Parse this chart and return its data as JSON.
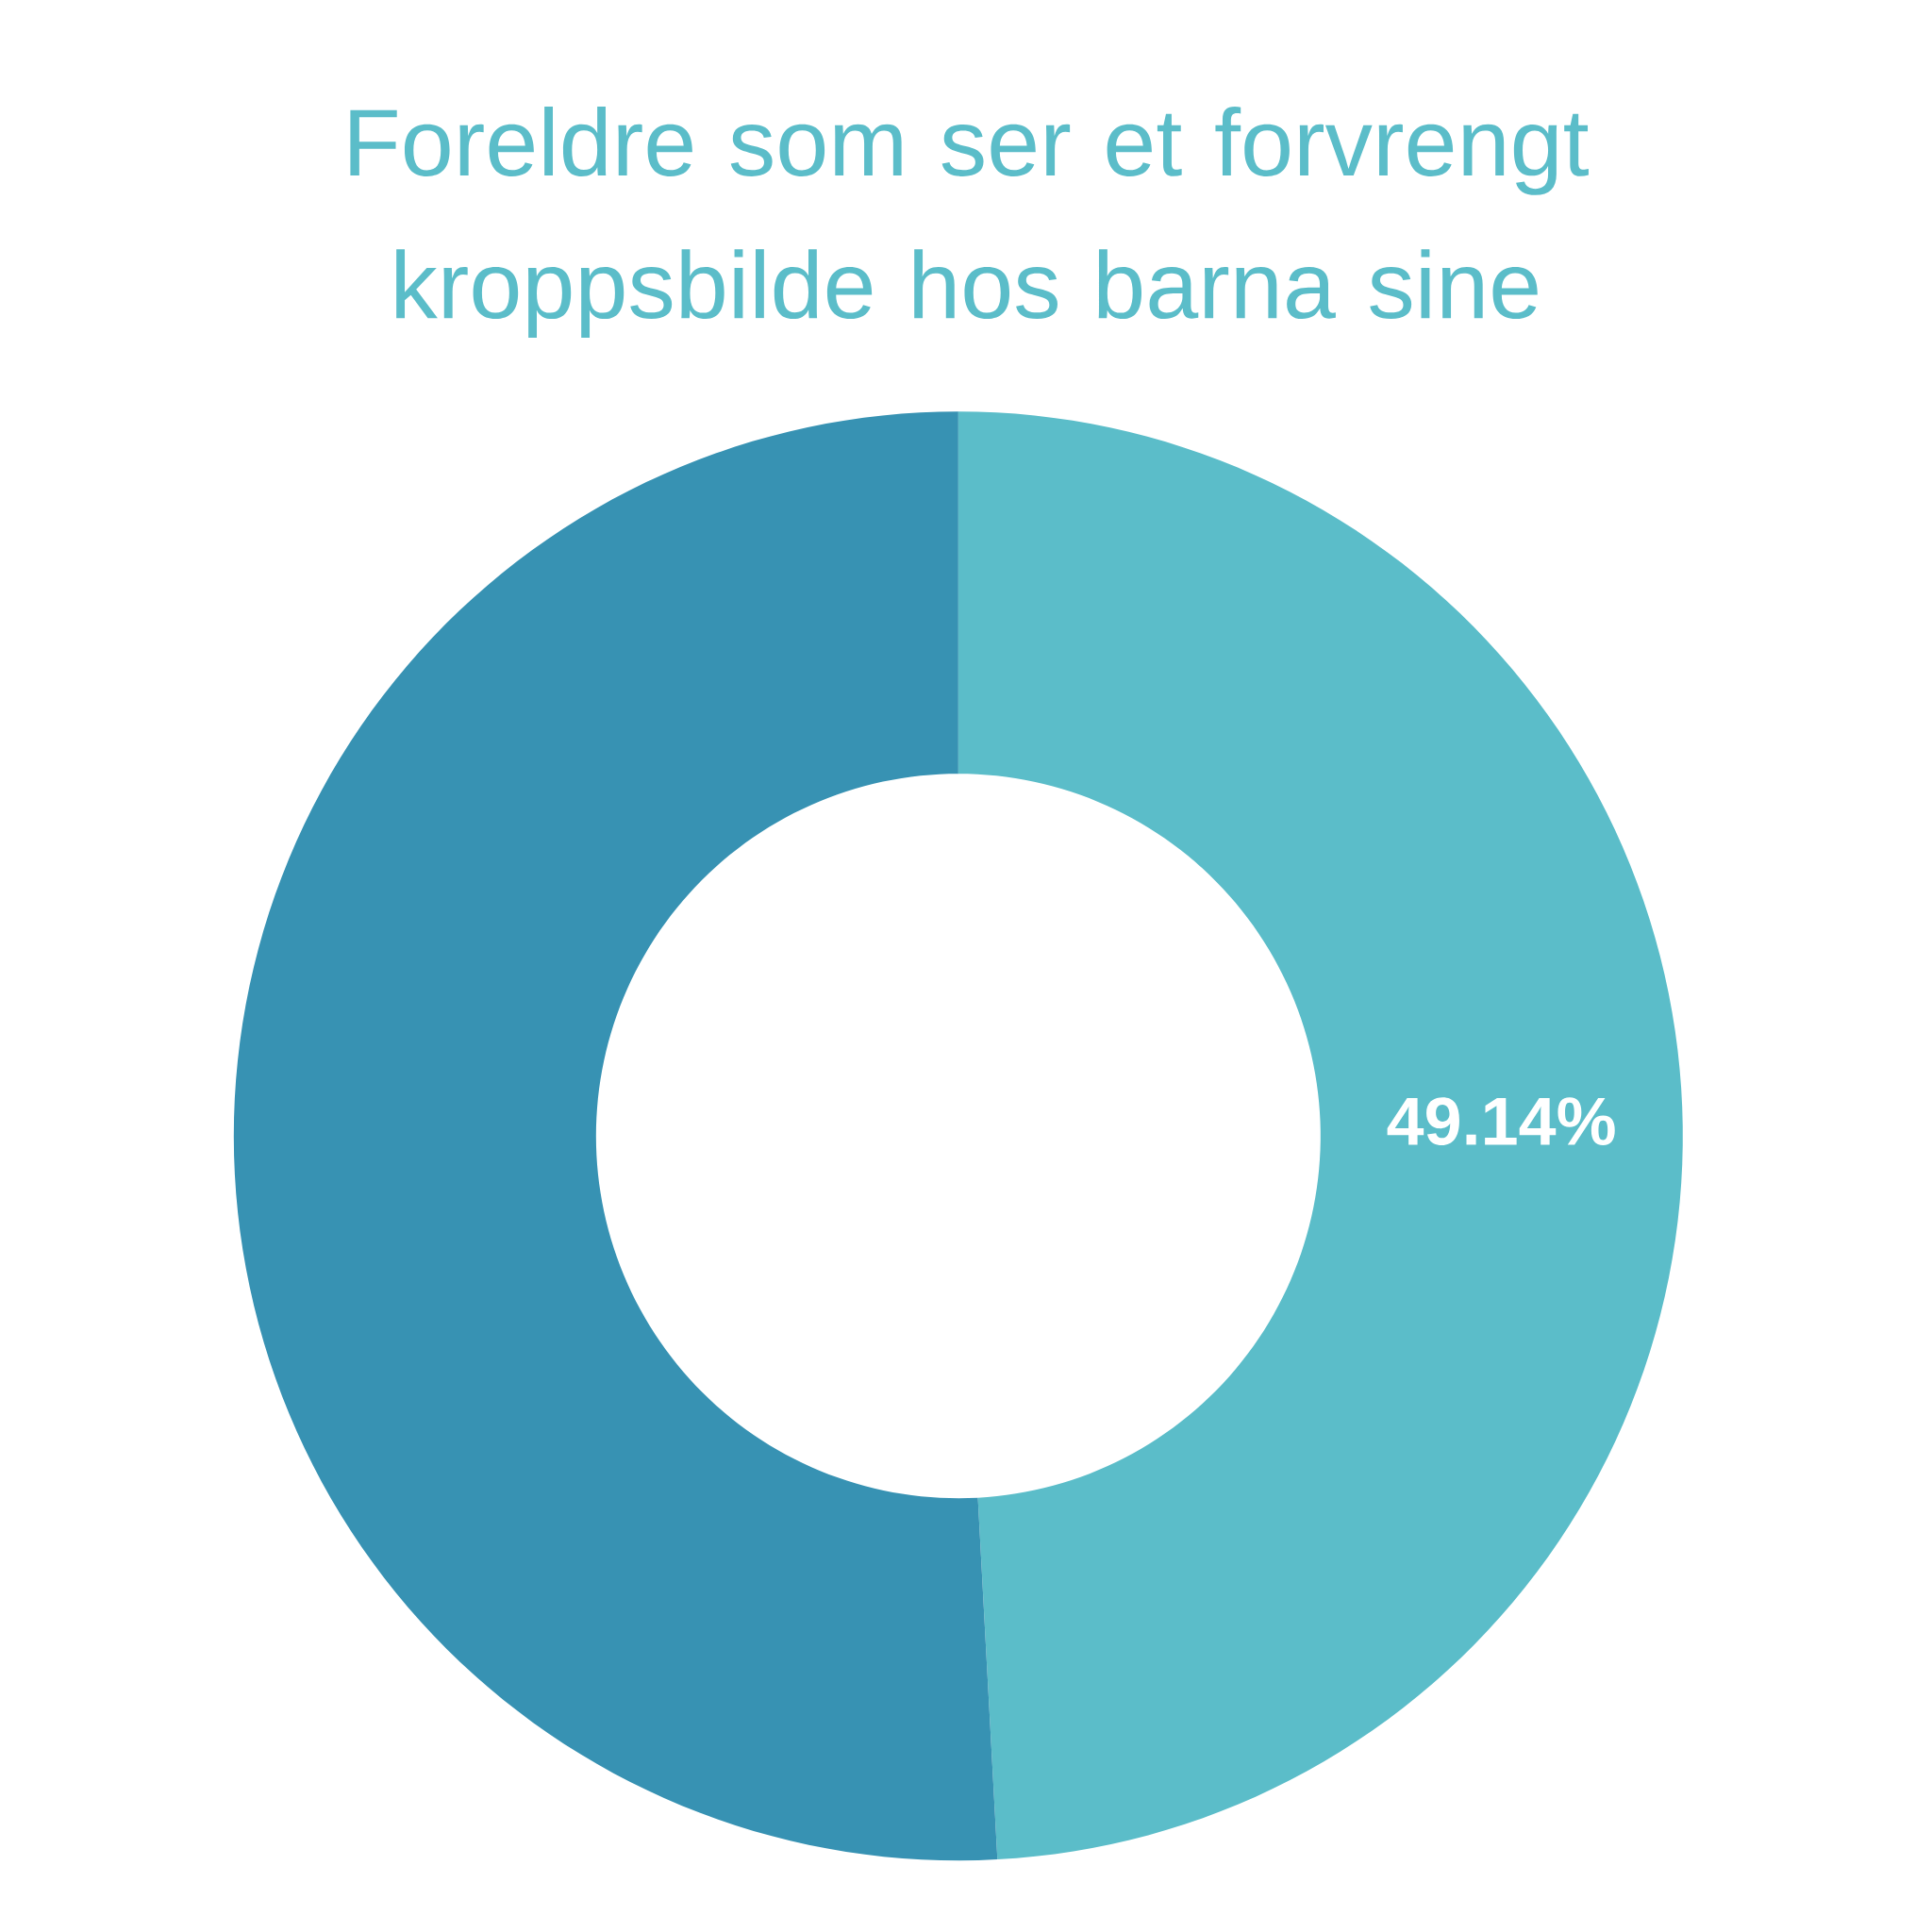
{
  "chart_data": {
    "type": "donut",
    "title": "Foreldre som ser et forvrengt kroppsbilde hos barna sine",
    "categories": [
      null,
      null
    ],
    "values": [
      49.14,
      50.86
    ],
    "colors": [
      "#5bbdc9",
      "#3792b3"
    ],
    "value_labels": [
      "49.14%",
      null
    ]
  }
}
